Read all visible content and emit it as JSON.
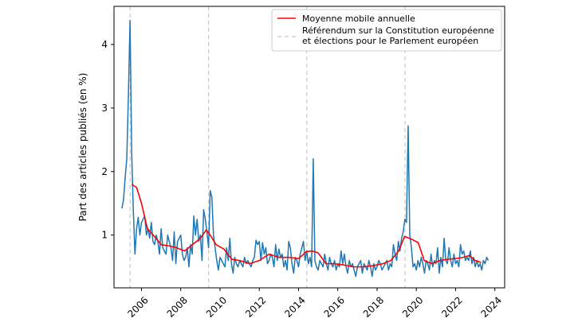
{
  "chart_data": {
    "type": "line",
    "ylabel": "Part des articles publiés (en %)",
    "xlabel": "",
    "xlim": [
      2004.6,
      2024.5
    ],
    "ylim": [
      0.17,
      4.6
    ],
    "x_ticks": [
      2006,
      2008,
      2010,
      2012,
      2014,
      2016,
      2018,
      2020,
      2022,
      2024
    ],
    "y_ticks": [
      1,
      2,
      3,
      4
    ],
    "grid": false,
    "legend_position": "top-right",
    "reference_lines": {
      "name": "Référendum sur la Constitution européenne et élections pour le Parlement européen",
      "x": [
        2005.42,
        2009.42,
        2014.42,
        2019.42
      ],
      "style": "dashed",
      "color": "#c8c8c8"
    },
    "series": [
      {
        "name": "",
        "color": "#1f77b4",
        "x_start": 2005.0,
        "step": 0.0833333,
        "values": [
          1.42,
          1.55,
          1.9,
          2.2,
          3.2,
          4.38,
          2.3,
          1.4,
          0.7,
          1.1,
          1.28,
          1.0,
          1.2,
          1.25,
          1.3,
          1.0,
          1.1,
          0.95,
          1.2,
          0.9,
          0.85,
          1.0,
          0.9,
          0.7,
          1.1,
          0.8,
          0.75,
          0.7,
          1.0,
          0.9,
          0.8,
          0.6,
          1.05,
          0.55,
          0.9,
          0.95,
          1.0,
          0.7,
          0.6,
          0.65,
          0.8,
          0.5,
          0.85,
          0.7,
          1.3,
          1.0,
          1.25,
          0.9,
          1.0,
          0.6,
          1.4,
          1.25,
          1.05,
          0.8,
          1.7,
          1.6,
          1.0,
          0.8,
          0.6,
          0.45,
          0.65,
          0.6,
          0.55,
          0.5,
          0.8,
          0.6,
          0.95,
          0.55,
          0.4,
          0.65,
          0.55,
          0.5,
          0.6,
          0.55,
          0.5,
          0.65,
          0.55,
          0.6,
          0.55,
          0.5,
          0.6,
          0.65,
          0.92,
          0.85,
          0.9,
          0.6,
          0.88,
          0.7,
          0.8,
          0.55,
          0.6,
          0.7,
          0.65,
          0.5,
          0.85,
          0.6,
          0.78,
          0.65,
          0.7,
          0.5,
          0.6,
          0.45,
          0.9,
          0.8,
          0.55,
          0.4,
          0.65,
          0.6,
          0.5,
          0.7,
          0.8,
          0.9,
          0.6,
          0.75,
          0.55,
          0.65,
          0.5,
          2.2,
          0.6,
          0.5,
          0.45,
          0.6,
          0.55,
          0.5,
          0.7,
          0.55,
          0.45,
          0.65,
          0.55,
          0.5,
          0.6,
          0.45,
          0.55,
          0.5,
          0.75,
          0.55,
          0.7,
          0.5,
          0.4,
          0.6,
          0.5,
          0.55,
          0.45,
          0.35,
          0.5,
          0.55,
          0.6,
          0.4,
          0.55,
          0.5,
          0.45,
          0.6,
          0.5,
          0.35,
          0.55,
          0.45,
          0.5,
          0.6,
          0.55,
          0.45,
          0.5,
          0.55,
          0.6,
          0.45,
          0.55,
          0.5,
          0.85,
          0.7,
          0.6,
          0.9,
          0.75,
          0.95,
          1.05,
          1.25,
          1.2,
          2.72,
          1.0,
          0.8,
          0.5,
          0.55,
          0.45,
          0.6,
          0.5,
          0.65,
          0.55,
          0.4,
          0.6,
          0.55,
          0.45,
          0.7,
          0.5,
          0.6,
          0.55,
          0.8,
          0.4,
          0.65,
          0.5,
          0.95,
          0.6,
          0.55,
          0.8,
          0.6,
          0.5,
          0.7,
          0.55,
          0.6,
          0.5,
          0.85,
          0.7,
          0.75,
          0.6,
          0.65,
          0.6,
          0.75,
          0.55,
          0.65,
          0.5,
          0.6,
          0.5,
          0.55,
          0.45,
          0.6,
          0.55,
          0.65,
          0.6
        ]
      },
      {
        "name": "Moyenne mobile annuelle",
        "color": "#ff0000",
        "x": [
          2005.5,
          2005.75,
          2006.0,
          2006.3,
          2006.6,
          2007.0,
          2007.4,
          2007.8,
          2008.2,
          2008.6,
          2009.0,
          2009.3,
          2009.5,
          2009.8,
          2010.2,
          2010.6,
          2011.0,
          2011.5,
          2012.0,
          2012.5,
          2013.0,
          2013.5,
          2014.0,
          2014.4,
          2014.7,
          2015.0,
          2015.4,
          2015.8,
          2016.3,
          2016.8,
          2017.3,
          2017.8,
          2018.3,
          2018.7,
          2019.1,
          2019.4,
          2019.8,
          2020.1,
          2020.4,
          2020.8,
          2021.2,
          2021.6,
          2022.0,
          2022.4,
          2022.7,
          2023.0,
          2023.3
        ],
        "values": [
          1.8,
          1.75,
          1.5,
          1.1,
          1.0,
          0.85,
          0.83,
          0.8,
          0.75,
          0.85,
          0.95,
          1.08,
          1.0,
          0.85,
          0.78,
          0.62,
          0.6,
          0.55,
          0.6,
          0.7,
          0.65,
          0.65,
          0.63,
          0.74,
          0.75,
          0.72,
          0.55,
          0.55,
          0.53,
          0.5,
          0.5,
          0.52,
          0.55,
          0.6,
          0.75,
          0.98,
          0.93,
          0.88,
          0.6,
          0.55,
          0.6,
          0.62,
          0.63,
          0.65,
          0.68,
          0.6,
          0.57
        ]
      }
    ]
  }
}
